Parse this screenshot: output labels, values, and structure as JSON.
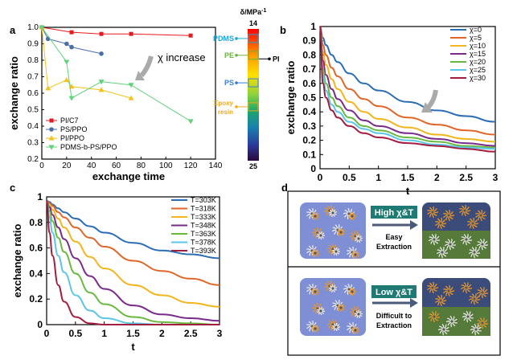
{
  "panels": {
    "a": "a",
    "b": "b",
    "c": "c",
    "d": "d"
  },
  "chart_data": [
    {
      "type": "line",
      "panel": "a",
      "xlabel": "exchange time",
      "ylabel": "exchange ratio",
      "xlim": [
        0,
        140
      ],
      "ylim": [
        0.2,
        1.0
      ],
      "xticks": [
        0,
        20,
        40,
        60,
        80,
        100,
        120,
        140
      ],
      "yticks": [
        0.2,
        0.3,
        0.4,
        0.5,
        0.6,
        0.7,
        0.8,
        0.9,
        1.0
      ],
      "annotation": "χ increase",
      "legend_position": "bottom-left",
      "series": [
        {
          "name": "PI/C7",
          "color": "#e8191f",
          "marker": "square",
          "x": [
            0,
            24,
            48,
            72,
            120
          ],
          "y": [
            1.0,
            0.97,
            0.96,
            0.96,
            0.95
          ]
        },
        {
          "name": "PS/PPO",
          "color": "#4a6ea9",
          "marker": "circle",
          "x": [
            0,
            5,
            20,
            24,
            48
          ],
          "y": [
            1.0,
            0.93,
            0.9,
            0.88,
            0.84
          ]
        },
        {
          "name": "PI/PPO",
          "color": "#f6c219",
          "marker": "triangle-up",
          "x": [
            0,
            5,
            20,
            24,
            48,
            72
          ],
          "y": [
            1.0,
            0.63,
            0.68,
            0.64,
            0.62,
            0.57
          ]
        },
        {
          "name": "PDMS-b-PS/PPO",
          "color": "#5fd27a",
          "marker": "triangle-down",
          "x": [
            0,
            20,
            24,
            48,
            72,
            120
          ],
          "y": [
            1.0,
            0.79,
            0.57,
            0.67,
            0.65,
            0.43
          ]
        }
      ]
    },
    {
      "type": "heatmap",
      "panel": "colorbar",
      "title": "δ/MPa",
      "title_sup": "-1",
      "range": [
        14,
        25
      ],
      "top_label": "14",
      "bottom_label": "25",
      "markers": [
        {
          "label": "PDMS",
          "value": 14.8,
          "color": "#1aa7e0"
        },
        {
          "label": "PE",
          "value": 16.2,
          "color": "#6db33f"
        },
        {
          "label": "PI",
          "value": 16.5,
          "color": "#000000"
        },
        {
          "label": "PS",
          "value": 18.5,
          "color": "#3a7fd5"
        },
        {
          "label": "Epoxy resin",
          "value": 20.5,
          "color": "#f2a81d"
        }
      ]
    },
    {
      "type": "line",
      "panel": "b",
      "xlabel": "t",
      "ylabel": "exchange ratio",
      "xlim": [
        0,
        3
      ],
      "ylim": [
        0,
        1
      ],
      "xticks": [
        "0",
        "0.5",
        "1",
        "1.5",
        "2",
        "2.5",
        "3"
      ],
      "yticks": [
        "0",
        "0.1",
        "0.2",
        "0.3",
        "0.4",
        "0.5",
        "0.6",
        "0.7",
        "0.8",
        "0.9",
        "1"
      ],
      "legend_position": "top-right",
      "x": [
        0,
        0.05,
        0.1,
        0.2,
        0.3,
        0.5,
        0.75,
        1,
        1.5,
        2,
        2.5,
        3
      ],
      "series": [
        {
          "name": "χ=0",
          "color": "#2a6db5",
          "values": [
            1,
            0.92,
            0.87,
            0.8,
            0.75,
            0.67,
            0.6,
            0.55,
            0.47,
            0.41,
            0.37,
            0.33
          ]
        },
        {
          "name": "χ=5",
          "color": "#e0662a",
          "values": [
            1,
            0.87,
            0.8,
            0.71,
            0.65,
            0.56,
            0.49,
            0.44,
            0.36,
            0.31,
            0.27,
            0.24
          ]
        },
        {
          "name": "χ=10",
          "color": "#f2b51c",
          "values": [
            1,
            0.82,
            0.73,
            0.63,
            0.56,
            0.47,
            0.4,
            0.35,
            0.29,
            0.24,
            0.21,
            0.19
          ]
        },
        {
          "name": "χ=15",
          "color": "#7a2a8a",
          "values": [
            1,
            0.76,
            0.66,
            0.56,
            0.49,
            0.41,
            0.34,
            0.3,
            0.25,
            0.21,
            0.18,
            0.16
          ]
        },
        {
          "name": "χ=20",
          "color": "#6ab93f",
          "values": [
            1,
            0.7,
            0.6,
            0.5,
            0.44,
            0.36,
            0.3,
            0.27,
            0.22,
            0.19,
            0.16,
            0.15
          ]
        },
        {
          "name": "χ=25",
          "color": "#5bc6e8",
          "values": [
            1,
            0.65,
            0.55,
            0.45,
            0.4,
            0.33,
            0.28,
            0.25,
            0.2,
            0.17,
            0.15,
            0.14
          ]
        },
        {
          "name": "χ=30",
          "color": "#a31d3f",
          "values": [
            1,
            0.6,
            0.5,
            0.41,
            0.36,
            0.3,
            0.25,
            0.22,
            0.18,
            0.16,
            0.14,
            0.12
          ]
        }
      ]
    },
    {
      "type": "line",
      "panel": "c",
      "xlabel": "t",
      "ylabel": "exchange ratio",
      "xlim": [
        0,
        3
      ],
      "ylim": [
        0,
        1
      ],
      "xticks": [
        "0",
        "0.5",
        "1",
        "1.5",
        "2",
        "2.5",
        "3"
      ],
      "yticks": [
        "0",
        "0.2",
        "0.4",
        "0.6",
        "0.8",
        "1"
      ],
      "legend_position": "top-right",
      "x": [
        0,
        0.05,
        0.1,
        0.2,
        0.3,
        0.5,
        0.75,
        1,
        1.5,
        2,
        2.5,
        3
      ],
      "series": [
        {
          "name": "T=303K",
          "color": "#2a6db5",
          "values": [
            0.97,
            0.96,
            0.94,
            0.91,
            0.88,
            0.83,
            0.77,
            0.72,
            0.64,
            0.58,
            0.55,
            0.52
          ]
        },
        {
          "name": "T=318K",
          "color": "#e0662a",
          "values": [
            0.97,
            0.95,
            0.93,
            0.88,
            0.84,
            0.76,
            0.68,
            0.61,
            0.5,
            0.42,
            0.36,
            0.31
          ]
        },
        {
          "name": "T=333K",
          "color": "#f2b51c",
          "values": [
            0.97,
            0.94,
            0.9,
            0.83,
            0.76,
            0.65,
            0.53,
            0.44,
            0.31,
            0.23,
            0.17,
            0.14
          ]
        },
        {
          "name": "T=348K",
          "color": "#7a2a8a",
          "values": [
            0.97,
            0.92,
            0.86,
            0.76,
            0.67,
            0.52,
            0.38,
            0.28,
            0.15,
            0.08,
            0.05,
            0.03
          ]
        },
        {
          "name": "T=363K",
          "color": "#6ab93f",
          "values": [
            0.97,
            0.89,
            0.81,
            0.68,
            0.57,
            0.4,
            0.25,
            0.16,
            0.06,
            0.02,
            0.01,
            0.0
          ]
        },
        {
          "name": "T=378K",
          "color": "#5bc6e8",
          "values": [
            0.97,
            0.84,
            0.72,
            0.54,
            0.41,
            0.23,
            0.11,
            0.05,
            0.01,
            0.0,
            0.0,
            0.0
          ]
        },
        {
          "name": "T=393K",
          "color": "#a31d3f",
          "values": [
            0.97,
            0.72,
            0.54,
            0.31,
            0.18,
            0.06,
            0.01,
            0.0,
            0.0,
            0.0,
            0.0,
            0.0
          ]
        }
      ]
    }
  ],
  "schematic": {
    "top_label_1": "High χ&T",
    "top_label_2": "Easy",
    "top_label_3": "Extraction",
    "bottom_label_1": "Low χ&T",
    "bottom_label_2": "Difficult to",
    "bottom_label_3": "Extraction",
    "colors": {
      "left_box": "#7f8fd6",
      "right_top": "#3b4b7a",
      "right_bottom": "#557a3a",
      "label_bg": "#1f7a74",
      "polymer_orange": "#e8962a",
      "polymer_white": "#e8e8e8"
    }
  }
}
